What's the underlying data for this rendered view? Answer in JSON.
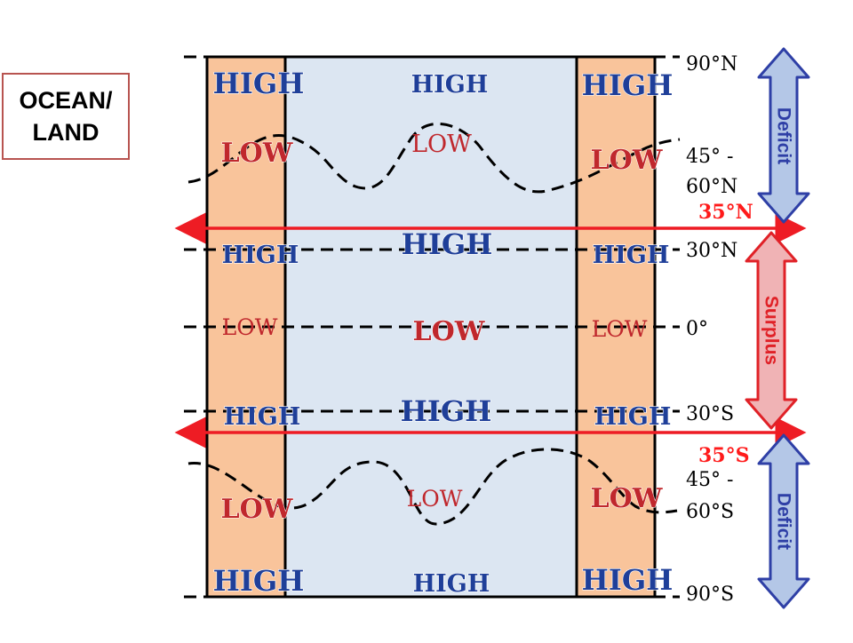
{
  "legend_box": {
    "line1": "OCEAN/",
    "line2": "LAND"
  },
  "labels": {
    "high": "HIGH",
    "low": "LOW"
  },
  "latitudes": {
    "n90": "90°N",
    "n45_60_a": "45° -",
    "n45_60_b": "60°N",
    "n35": "35°N",
    "n30": "30°N",
    "eq": "0°",
    "s30": "30°S",
    "s35": "35°S",
    "s45_60_a": "45° -",
    "s45_60_b": "60°S",
    "s90": "90°S"
  },
  "arrows": {
    "deficit_north": "Deficit",
    "surplus": "Surplus",
    "deficit_south": "Deficit"
  },
  "colors": {
    "land": "#f9c49b",
    "ocean": "#dce6f2",
    "high_blue": "#1f3f99",
    "low_red": "#c0282d",
    "arrow_red": "#ee1c24",
    "deficit_fill": "#b4c7e7",
    "deficit_stroke": "#2e3fa6",
    "surplus_fill": "#f0b3b5",
    "surplus_stroke": "#e02127"
  }
}
